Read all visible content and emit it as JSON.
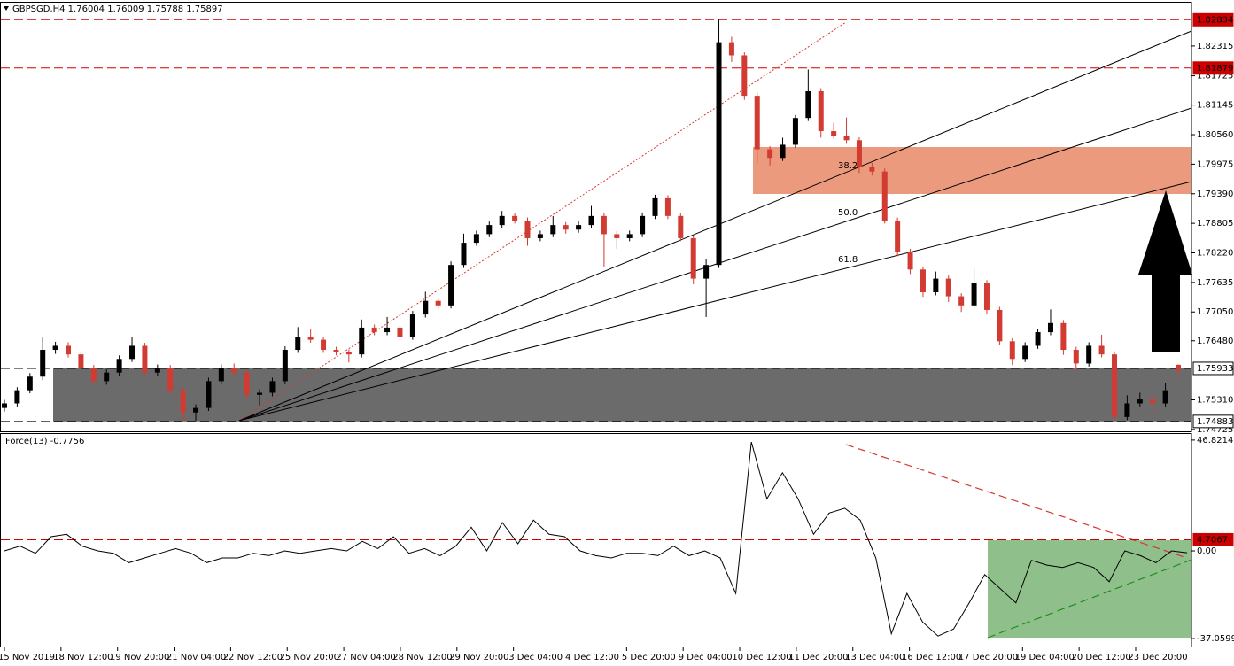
{
  "chart_data": [
    {
      "type": "candlestick",
      "title": "GBPSGD,H4  1.76004 1.76009 1.75788 1.75897",
      "up_color": "#000000",
      "down_color": "#d23b32",
      "ylim": [
        1.7467,
        1.8319
      ],
      "yticks": [
        1.82315,
        1.81725,
        1.81145,
        {
          "value": 1.8056,
          "label": "1.80560"
        },
        1.79975,
        {
          "value": 1.7939,
          "label": "1.79390"
        },
        1.78805,
        {
          "value": 1.7822,
          "label": "1.78220"
        },
        1.77635,
        {
          "value": 1.7705,
          "label": "1.77050"
        },
        {
          "value": 1.7648,
          "label": "1.76480"
        },
        {
          "value": 1.7531,
          "label": "1.75310"
        },
        1.74725
      ],
      "levels": [
        1.82834,
        1.81879,
        1.75933,
        1.74883
      ],
      "level_colors": [
        "#cc0000",
        "#cc0000",
        "#000000",
        "#000000"
      ],
      "annotations": [
        "38.2",
        "50.0",
        "61.8"
      ],
      "xlabels": [
        "15 Nov 2019",
        "18 Nov 12:00",
        "19 Nov 20:00",
        "21 Nov 04:00",
        "22 Nov 12:00",
        "25 Nov 20:00",
        "27 Nov 04:00",
        "28 Nov 12:00",
        "29 Nov 20:00",
        "3 Dec 04:00",
        "4 Dec 12:00",
        "5 Dec 20:00",
        "9 Dec 04:00",
        "10 Dec 12:00",
        "11 Dec 20:00",
        "13 Dec 04:00",
        "16 Dec 12:00",
        "17 Dec 20:00",
        "19 Dec 04:00",
        "20 Dec 12:00",
        "23 Dec 20:00"
      ],
      "candles": [
        [
          1.7515,
          1.7531,
          1.7508,
          1.7524
        ],
        [
          1.7524,
          1.7556,
          1.7518,
          1.755
        ],
        [
          1.755,
          1.7584,
          1.7544,
          1.7577
        ],
        [
          1.7577,
          1.7655,
          1.757,
          1.763
        ],
        [
          1.763,
          1.7646,
          1.7622,
          1.7638
        ],
        [
          1.7638,
          1.7645,
          1.7615,
          1.7621
        ],
        [
          1.7621,
          1.7628,
          1.7588,
          1.7594
        ],
        [
          1.7594,
          1.76,
          1.756,
          1.7568
        ],
        [
          1.7568,
          1.7592,
          1.7561,
          1.7585
        ],
        [
          1.7585,
          1.7619,
          1.7579,
          1.7612
        ],
        [
          1.7612,
          1.7655,
          1.7606,
          1.7638
        ],
        [
          1.7638,
          1.7644,
          1.7579,
          1.7585
        ],
        [
          1.7585,
          1.7601,
          1.7578,
          1.7594
        ],
        [
          1.7594,
          1.76,
          1.7543,
          1.755
        ],
        [
          1.755,
          1.7556,
          1.749,
          1.7506
        ],
        [
          1.7506,
          1.7522,
          1.749,
          1.7515
        ],
        [
          1.7515,
          1.7575,
          1.7509,
          1.7568
        ],
        [
          1.7568,
          1.7601,
          1.7562,
          1.7594
        ],
        [
          1.7594,
          1.7603,
          1.7578,
          1.7585
        ],
        [
          1.7585,
          1.7591,
          1.7534,
          1.7541
        ],
        [
          1.7541,
          1.7552,
          1.752,
          1.7545
        ],
        [
          1.7545,
          1.7575,
          1.7538,
          1.7568
        ],
        [
          1.7568,
          1.7637,
          1.7562,
          1.763
        ],
        [
          1.763,
          1.7675,
          1.7624,
          1.7656
        ],
        [
          1.7656,
          1.7672,
          1.7644,
          1.765
        ],
        [
          1.765,
          1.7656,
          1.7624,
          1.763
        ],
        [
          1.763,
          1.7636,
          1.7619,
          1.7625
        ],
        [
          1.7625,
          1.7631,
          1.7605,
          1.7621
        ],
        [
          1.7621,
          1.769,
          1.7615,
          1.7674
        ],
        [
          1.7674,
          1.768,
          1.7659,
          1.7665
        ],
        [
          1.7665,
          1.7695,
          1.7659,
          1.7674
        ],
        [
          1.7674,
          1.768,
          1.765,
          1.7656
        ],
        [
          1.7656,
          1.7707,
          1.765,
          1.77
        ],
        [
          1.77,
          1.7745,
          1.7694,
          1.7727
        ],
        [
          1.7727,
          1.7733,
          1.7712,
          1.7718
        ],
        [
          1.7718,
          1.7805,
          1.7712,
          1.7798
        ],
        [
          1.7798,
          1.786,
          1.7792,
          1.7842
        ],
        [
          1.7842,
          1.7866,
          1.7836,
          1.7859
        ],
        [
          1.7859,
          1.7884,
          1.7853,
          1.7877
        ],
        [
          1.7877,
          1.7905,
          1.7871,
          1.7895
        ],
        [
          1.7895,
          1.7901,
          1.788,
          1.7886
        ],
        [
          1.7886,
          1.7892,
          1.7836,
          1.7851
        ],
        [
          1.7851,
          1.7866,
          1.7845,
          1.7859
        ],
        [
          1.7859,
          1.7895,
          1.7853,
          1.7877
        ],
        [
          1.7877,
          1.7883,
          1.786,
          1.7868
        ],
        [
          1.7868,
          1.7884,
          1.7862,
          1.7877
        ],
        [
          1.7877,
          1.7915,
          1.7871,
          1.7895
        ],
        [
          1.7895,
          1.7901,
          1.7795,
          1.7859
        ],
        [
          1.7859,
          1.7865,
          1.783,
          1.7851
        ],
        [
          1.7851,
          1.7866,
          1.7845,
          1.7859
        ],
        [
          1.7859,
          1.7902,
          1.7853,
          1.7895
        ],
        [
          1.7895,
          1.7937,
          1.7889,
          1.793
        ],
        [
          1.793,
          1.7936,
          1.7889,
          1.7895
        ],
        [
          1.7895,
          1.7901,
          1.7845,
          1.7851
        ],
        [
          1.7851,
          1.7857,
          1.776,
          1.7771
        ],
        [
          1.7771,
          1.781,
          1.7695,
          1.7798
        ],
        [
          1.7798,
          1.8283,
          1.7792,
          1.8239
        ],
        [
          1.8239,
          1.825,
          1.82,
          1.8213
        ],
        [
          1.8213,
          1.8219,
          1.8125,
          1.8133
        ],
        [
          1.8133,
          1.8139,
          1.8,
          1.8027
        ],
        [
          1.8027,
          1.8033,
          1.7995,
          1.801
        ],
        [
          1.801,
          1.805,
          1.8004,
          1.8036
        ],
        [
          1.8036,
          1.8095,
          1.803,
          1.8089
        ],
        [
          1.8089,
          1.8185,
          1.8083,
          1.8142
        ],
        [
          1.8142,
          1.8148,
          1.805,
          1.8063
        ],
        [
          1.8063,
          1.808,
          1.8048,
          1.8054
        ],
        [
          1.8054,
          1.809,
          1.8038,
          1.8045
        ],
        [
          1.8045,
          1.8051,
          1.798,
          1.7992
        ],
        [
          1.7992,
          1.8,
          1.7975,
          1.7983
        ],
        [
          1.7983,
          1.7989,
          1.788,
          1.7886
        ],
        [
          1.7886,
          1.7892,
          1.7815,
          1.7824
        ],
        [
          1.7824,
          1.783,
          1.778,
          1.7789
        ],
        [
          1.7789,
          1.7795,
          1.7735,
          1.7744
        ],
        [
          1.7744,
          1.7785,
          1.7738,
          1.7771
        ],
        [
          1.7771,
          1.7777,
          1.7725,
          1.7736
        ],
        [
          1.7736,
          1.7742,
          1.7705,
          1.7718
        ],
        [
          1.7718,
          1.779,
          1.7712,
          1.7762
        ],
        [
          1.7762,
          1.7768,
          1.77,
          1.7709
        ],
        [
          1.7709,
          1.7715,
          1.764,
          1.7647
        ],
        [
          1.7647,
          1.7653,
          1.76,
          1.7612
        ],
        [
          1.7612,
          1.7645,
          1.7606,
          1.7638
        ],
        [
          1.7638,
          1.7672,
          1.7632,
          1.7665
        ],
        [
          1.7665,
          1.771,
          1.7659,
          1.7683
        ],
        [
          1.7683,
          1.7689,
          1.762,
          1.763
        ],
        [
          1.763,
          1.7636,
          1.759,
          1.7603
        ],
        [
          1.7603,
          1.7645,
          1.7597,
          1.7638
        ],
        [
          1.7638,
          1.766,
          1.7615,
          1.7621
        ],
        [
          1.7621,
          1.7627,
          1.749,
          1.7497
        ],
        [
          1.7497,
          1.754,
          1.7491,
          1.7524
        ],
        [
          1.7524,
          1.7545,
          1.7518,
          1.7532
        ],
        [
          1.7532,
          1.7538,
          1.7505,
          1.7524
        ],
        [
          1.7524,
          1.7565,
          1.7518,
          1.755
        ],
        [
          1.76004,
          1.76009,
          1.75788,
          1.75897
        ]
      ]
    },
    {
      "type": "line",
      "title": "Force(13) -0.7756",
      "color": "#000000",
      "ylim": [
        -40.4,
        49.4
      ],
      "yticks": [
        46.8214,
        {
          "value": 0,
          "label": "0.00"
        },
        -37.0599
      ],
      "levels": [
        4.7067
      ],
      "level_colors": [
        "#cc0000"
      ],
      "values": [
        0,
        2,
        -1,
        6,
        7,
        2,
        0,
        -1,
        -5,
        -3,
        -1,
        1,
        -1,
        -5,
        -3,
        -3,
        -1,
        -2,
        0,
        -1,
        0,
        1,
        0,
        4,
        1,
        6,
        -1,
        1,
        -2,
        2,
        10,
        0,
        12,
        3,
        13,
        7,
        6,
        0,
        -2,
        -3,
        -1,
        -1,
        -2,
        2,
        -2,
        0,
        -3,
        -18,
        46,
        22,
        33,
        22,
        7,
        16,
        18,
        13,
        -3,
        -35,
        -18,
        -30,
        -36,
        -33,
        -22,
        -10,
        -16,
        -22,
        -4,
        -6,
        -7,
        -5,
        -7,
        -13,
        0,
        -2,
        -5,
        0,
        -0.7756
      ]
    }
  ]
}
